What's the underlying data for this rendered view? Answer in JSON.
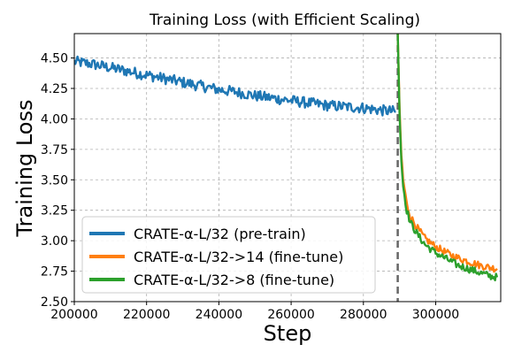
{
  "chart_data": {
    "type": "line",
    "title": "Training Loss (with Efficient Scaling)",
    "xlabel": "Step",
    "ylabel": "Training Loss",
    "xlim": [
      200000,
      318000
    ],
    "ylim": [
      2.5,
      4.7
    ],
    "xticks": [
      200000,
      220000,
      240000,
      260000,
      280000,
      300000
    ],
    "xtick_labels": [
      "200000",
      "220000",
      "240000",
      "260000",
      "280000",
      "300000"
    ],
    "yticks": [
      2.5,
      2.75,
      3.0,
      3.25,
      3.5,
      3.75,
      4.0,
      4.25,
      4.5
    ],
    "ytick_labels": [
      "2.50",
      "2.75",
      "3.00",
      "3.25",
      "3.50",
      "3.75",
      "4.00",
      "4.25",
      "4.50"
    ],
    "grid": true,
    "legend_position": "lower-left",
    "vline": {
      "x": 289500,
      "style": "dashed",
      "color": "#666666"
    },
    "series": [
      {
        "name": "CRATE-α-L/32 (pre-train)",
        "color": "#1f77b4",
        "x": [
          200000,
          205000,
          210000,
          215000,
          220000,
          225000,
          230000,
          235000,
          240000,
          245000,
          250000,
          255000,
          260000,
          265000,
          270000,
          275000,
          280000,
          285000,
          289000
        ],
        "y": [
          4.47,
          4.45,
          4.42,
          4.39,
          4.36,
          4.33,
          4.3,
          4.27,
          4.24,
          4.22,
          4.19,
          4.17,
          4.15,
          4.13,
          4.11,
          4.1,
          4.09,
          4.07,
          4.06
        ]
      },
      {
        "name": "CRATE-α-L/32->14 (fine-tune)",
        "color": "#ff7f0e",
        "x": [
          289500,
          290000,
          290500,
          291000,
          292000,
          293000,
          295000,
          297000,
          300000,
          303000,
          306000,
          309000,
          312000,
          315000,
          317000
        ],
        "y": [
          4.7,
          4.1,
          3.7,
          3.5,
          3.3,
          3.2,
          3.1,
          3.02,
          2.95,
          2.9,
          2.86,
          2.83,
          2.8,
          2.78,
          2.77
        ]
      },
      {
        "name": "CRATE-α-L/32->8 (fine-tune)",
        "color": "#2ca02c",
        "x": [
          289500,
          290000,
          290500,
          291000,
          292000,
          293000,
          295000,
          297000,
          300000,
          303000,
          306000,
          309000,
          312000,
          315000,
          317000
        ],
        "y": [
          4.7,
          4.05,
          3.65,
          3.45,
          3.25,
          3.15,
          3.05,
          2.97,
          2.9,
          2.85,
          2.8,
          2.77,
          2.74,
          2.71,
          2.7
        ]
      }
    ]
  }
}
